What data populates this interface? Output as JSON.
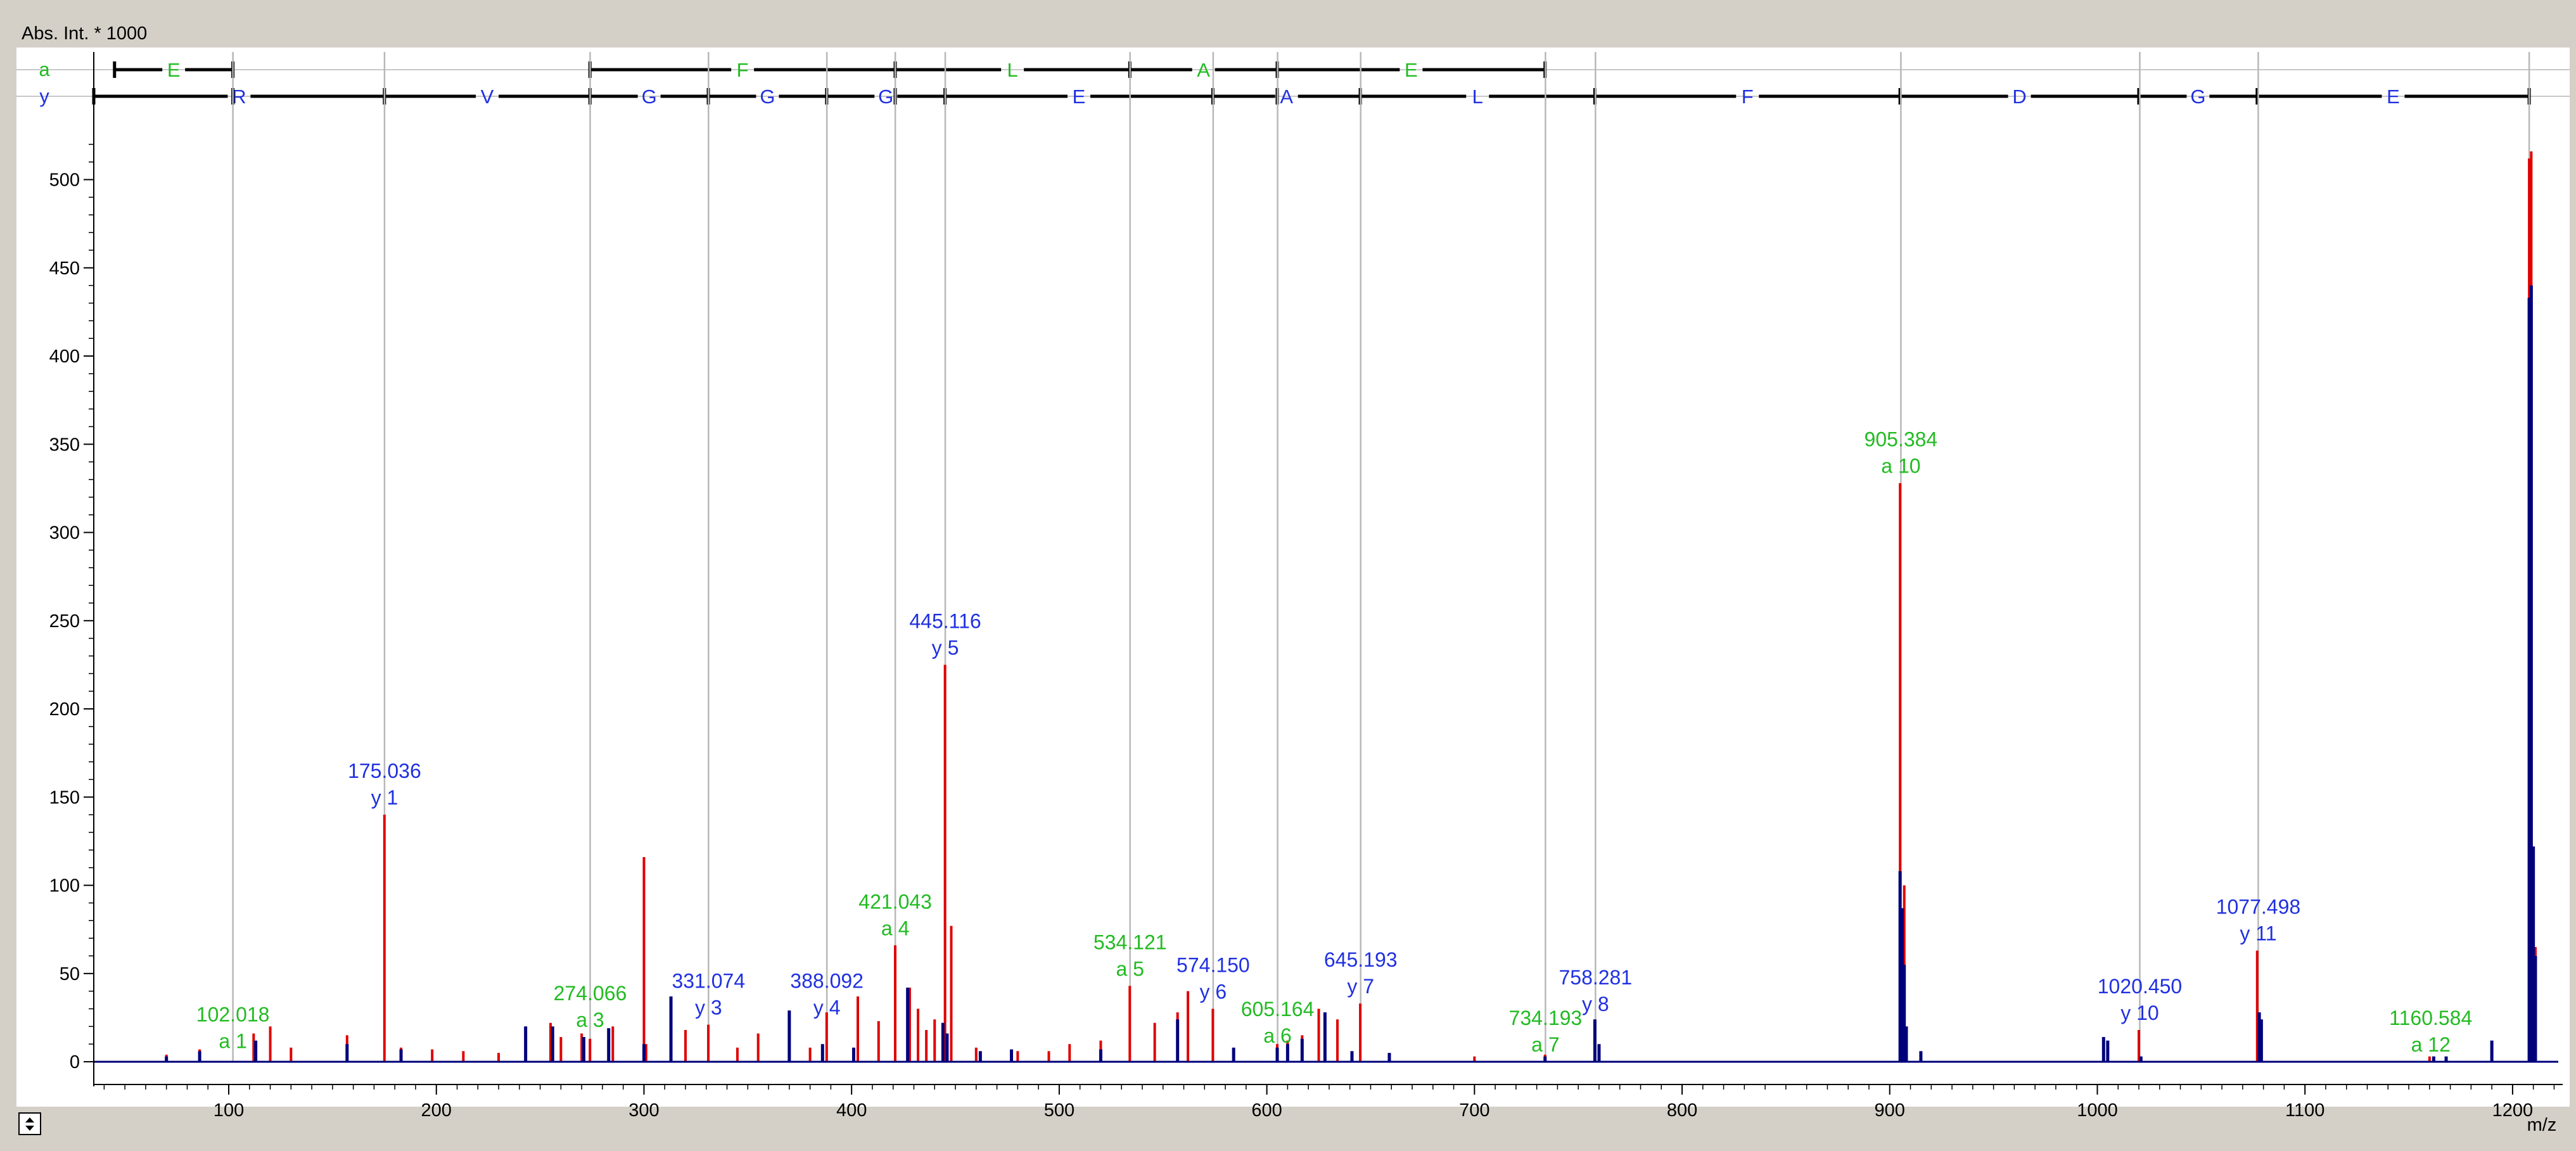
{
  "window": {
    "toolbar_icon": "zoom-toggle-icon"
  },
  "chart_data": {
    "type": "bar",
    "title": "",
    "ylabel": "Abs. Int. * 1000",
    "xlabel": "m/z",
    "xlim": [
      35,
      1222
    ],
    "ylim": [
      -5,
      530
    ],
    "x_ticks": [
      100,
      200,
      300,
      400,
      500,
      600,
      700,
      800,
      900,
      1000,
      1100,
      1200
    ],
    "y_ticks": [
      0,
      50,
      100,
      150,
      200,
      250,
      300,
      350,
      400,
      450,
      500
    ],
    "grid": false,
    "colors": {
      "red": "#e00000",
      "blue": "#00007a",
      "a_ion": "#22bb22",
      "y_ion": "#2030e0",
      "guide": "#b8b8b8"
    },
    "series": [
      {
        "name": "",
        "color": "red",
        "x": [
          70,
          86,
          112,
          120,
          130,
          157,
          175,
          183,
          198,
          213,
          230,
          243,
          255,
          260,
          270,
          274,
          285,
          300,
          301,
          320,
          331,
          345,
          355,
          370,
          380,
          388,
          403,
          413,
          421,
          428,
          432,
          436,
          440,
          445,
          448,
          460,
          480,
          495,
          505,
          520,
          534,
          546,
          557,
          562,
          574,
          605,
          610,
          617,
          625,
          628,
          634,
          645,
          700,
          734,
          758,
          905,
          907,
          1003,
          1020,
          1077,
          1160,
          1190,
          1208,
          1209,
          1210,
          1211
        ],
        "y": [
          4,
          7,
          16,
          20,
          8,
          15,
          140,
          8,
          7,
          6,
          5,
          20,
          22,
          14,
          16,
          13,
          20,
          116,
          10,
          18,
          21,
          8,
          16,
          29,
          8,
          28,
          37,
          23,
          66,
          42,
          30,
          18,
          24,
          225,
          77,
          8,
          6,
          6,
          10,
          12,
          43,
          22,
          28,
          40,
          30,
          10,
          12,
          15,
          30,
          18,
          24,
          33,
          3,
          4,
          23,
          328,
          100,
          12,
          18,
          63,
          3,
          8,
          512,
          516,
          110,
          65
        ]
      },
      {
        "name": "",
        "color": "blue",
        "x": [
          70,
          86,
          113,
          157,
          183,
          243,
          256,
          271,
          283,
          300,
          313,
          370,
          386,
          401,
          427,
          444,
          446,
          462,
          477,
          520,
          557,
          584,
          605,
          610,
          617,
          628,
          641,
          659,
          734,
          758,
          760,
          905,
          906,
          907,
          908,
          915,
          1003,
          1005,
          1021,
          1078,
          1079,
          1162,
          1168,
          1190,
          1208,
          1209,
          1210,
          1211
        ],
        "y": [
          3,
          6,
          12,
          10,
          7,
          20,
          20,
          14,
          19,
          10,
          37,
          29,
          10,
          8,
          42,
          22,
          16,
          6,
          7,
          7,
          24,
          8,
          8,
          10,
          13,
          28,
          6,
          5,
          3,
          24,
          10,
          108,
          87,
          55,
          20,
          6,
          14,
          12,
          3,
          28,
          24,
          3,
          3,
          12,
          433,
          440,
          122,
          60
        ]
      }
    ],
    "guide_lines": [
      102.018,
      175.036,
      274.066,
      331.074,
      388.092,
      421.043,
      445.116,
      534.121,
      574.15,
      605.164,
      645.193,
      734.193,
      758.281,
      905.384,
      1020.45,
      1077.498,
      1208
    ],
    "annotations": [
      {
        "mz": "102.018",
        "ion": "a 1",
        "series": "a",
        "x": 102.018,
        "y": 2
      },
      {
        "mz": "175.036",
        "ion": "y 1",
        "series": "y",
        "x": 175.036,
        "y": 140
      },
      {
        "mz": "274.066",
        "ion": "a 3",
        "series": "a",
        "x": 274.066,
        "y": 14
      },
      {
        "mz": "331.074",
        "ion": "y 3",
        "series": "y",
        "x": 331.074,
        "y": 21
      },
      {
        "mz": "388.092",
        "ion": "y 4",
        "series": "y",
        "x": 388.092,
        "y": 21
      },
      {
        "mz": "421.043",
        "ion": "a 4",
        "series": "a",
        "x": 421.043,
        "y": 66
      },
      {
        "mz": "445.116",
        "ion": "y 5",
        "series": "y",
        "x": 445.116,
        "y": 225
      },
      {
        "mz": "534.121",
        "ion": "a 5",
        "series": "a",
        "x": 534.121,
        "y": 43
      },
      {
        "mz": "574.150",
        "ion": "y 6",
        "series": "y",
        "x": 574.15,
        "y": 30
      },
      {
        "mz": "605.164",
        "ion": "a 6",
        "series": "a",
        "x": 605.164,
        "y": 5
      },
      {
        "mz": "645.193",
        "ion": "y 7",
        "series": "y",
        "x": 645.193,
        "y": 33
      },
      {
        "mz": "734.193",
        "ion": "a 7",
        "series": "a",
        "x": 734.193,
        "y": 0
      },
      {
        "mz": "758.281",
        "ion": "y 8",
        "series": "y",
        "x": 758.281,
        "y": 23
      },
      {
        "mz": "905.384",
        "ion": "a 10",
        "series": "a",
        "x": 905.384,
        "y": 328
      },
      {
        "mz": "1020.450",
        "ion": "y 10",
        "series": "y",
        "x": 1020.45,
        "y": 18
      },
      {
        "mz": "1077.498",
        "ion": "y 11",
        "series": "y",
        "x": 1077.498,
        "y": 63
      },
      {
        "mz": "1160.584",
        "ion": "a 12",
        "series": "a",
        "x": 1160.584,
        "y": 0
      }
    ],
    "sequence_ladders": [
      {
        "label": "a",
        "color": "a_ion",
        "start": 45,
        "boundaries": [
          102,
          274,
          421,
          534,
          605,
          734
        ],
        "residues": [
          {
            "residue": "E",
            "from": 45,
            "to": 102
          },
          {
            "residue": "F",
            "from": 274,
            "to": 421
          },
          {
            "residue": "L",
            "from": 421,
            "to": 534
          },
          {
            "residue": "A",
            "from": 534,
            "to": 605
          },
          {
            "residue": "E",
            "from": 605,
            "to": 734
          }
        ]
      },
      {
        "label": "y",
        "color": "y_ion",
        "start": 35,
        "boundaries": [
          102,
          175,
          274,
          331,
          388,
          421,
          445,
          574,
          605,
          645,
          758,
          905,
          1020,
          1077,
          1208
        ],
        "residues": [
          {
            "residue": "R",
            "from": 35,
            "to": 175
          },
          {
            "residue": "V",
            "from": 175,
            "to": 274
          },
          {
            "residue": "G",
            "from": 274,
            "to": 331
          },
          {
            "residue": "G",
            "from": 331,
            "to": 388
          },
          {
            "residue": "G",
            "from": 388,
            "to": 445
          },
          {
            "residue": "E",
            "from": 445,
            "to": 574
          },
          {
            "residue": "A",
            "from": 574,
            "to": 645
          },
          {
            "residue": "L",
            "from": 645,
            "to": 758
          },
          {
            "residue": "F",
            "from": 758,
            "to": 905
          },
          {
            "residue": "D",
            "from": 905,
            "to": 1020
          },
          {
            "residue": "G",
            "from": 1020,
            "to": 1077
          },
          {
            "residue": "E",
            "from": 1077,
            "to": 1208
          }
        ]
      }
    ]
  }
}
